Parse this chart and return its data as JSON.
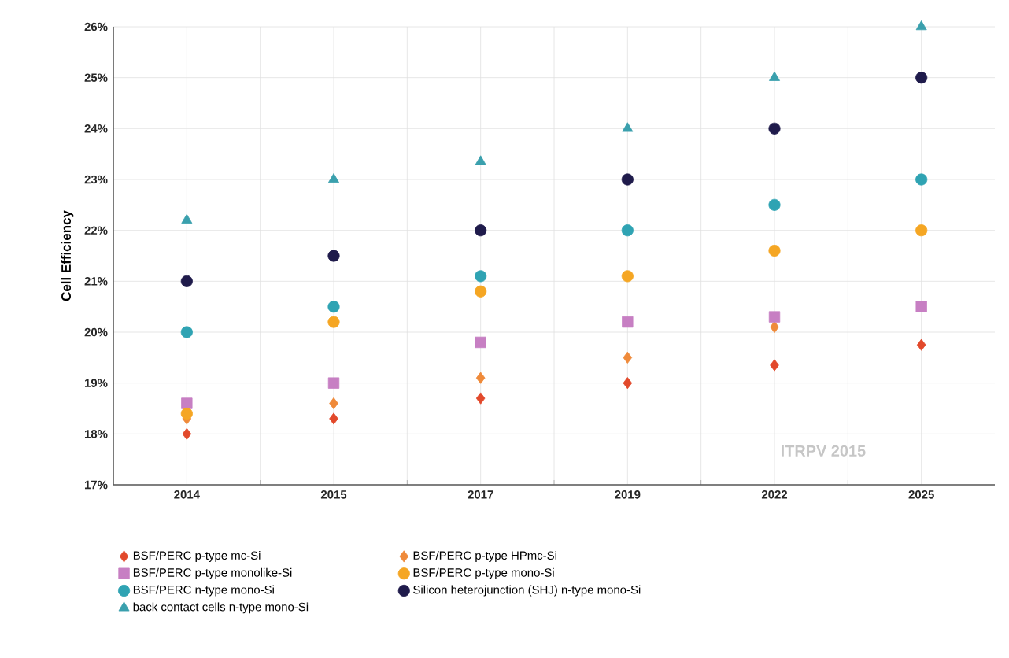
{
  "chart_data": {
    "type": "scatter",
    "ylabel": "Cell Efficiency",
    "categories": [
      "2014",
      "2015",
      "2017",
      "2019",
      "2022",
      "2025"
    ],
    "ylim": [
      17,
      26
    ],
    "yticks": [
      {
        "value": 17,
        "label": "17%"
      },
      {
        "value": 18,
        "label": "18%"
      },
      {
        "value": 19,
        "label": "19%"
      },
      {
        "value": 20,
        "label": "20%"
      },
      {
        "value": 21,
        "label": "21%"
      },
      {
        "value": 22,
        "label": "22%"
      },
      {
        "value": 23,
        "label": "23%"
      },
      {
        "value": 24,
        "label": "24%"
      },
      {
        "value": 25,
        "label": "25%"
      },
      {
        "value": 26,
        "label": "26%"
      }
    ],
    "grid": true,
    "legend": "bottom",
    "annotations": [
      "ITRPV 2015"
    ],
    "series": [
      {
        "name": "BSF/PERC p-type mc-Si",
        "color": "#e2492b",
        "marker": "diamond",
        "values": [
          18.0,
          18.3,
          18.7,
          19.0,
          19.35,
          19.75
        ]
      },
      {
        "name": "BSF/PERC p-type HPmc-Si",
        "color": "#ef8a3a",
        "marker": "diamond",
        "values": [
          18.3,
          18.6,
          19.1,
          19.5,
          20.1,
          null
        ]
      },
      {
        "name": "BSF/PERC p-type monolike-Si",
        "color": "#c77fc3",
        "marker": "square",
        "values": [
          18.6,
          19.0,
          19.8,
          20.2,
          20.3,
          20.5
        ]
      },
      {
        "name": "BSF/PERC p-type mono-Si",
        "color": "#f5a623",
        "marker": "circle",
        "values": [
          18.4,
          20.2,
          20.8,
          21.1,
          21.6,
          22.0
        ]
      },
      {
        "name": "BSF/PERC n-type mono-Si",
        "color": "#2fa3b3",
        "marker": "circle",
        "values": [
          20.0,
          20.5,
          21.1,
          22.0,
          22.5,
          23.0
        ]
      },
      {
        "name": "Silicon heterojunction (SHJ) n-type mono-Si",
        "color": "#1f1b4b",
        "marker": "circle",
        "values": [
          21.0,
          21.5,
          22.0,
          23.0,
          24.0,
          25.0
        ]
      },
      {
        "name": "back contact cells n-type mono-Si",
        "color": "#3aa0ad",
        "marker": "triangle",
        "values": [
          22.2,
          23.0,
          23.35,
          24.0,
          25.0,
          26.0
        ]
      }
    ]
  }
}
